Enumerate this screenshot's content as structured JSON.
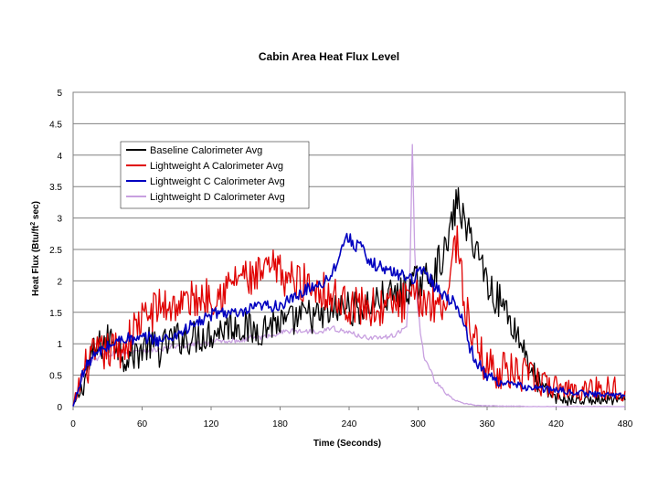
{
  "chart_data": {
    "type": "line",
    "title": "Cabin Area Heat Flux Level",
    "xlabel": "Time (Seconds)",
    "ylabel_main": "Heat Flux (Btu/ft",
    "ylabel_sup": "2",
    "ylabel_tail": " sec)",
    "xlim": [
      0,
      480
    ],
    "ylim": [
      0,
      5
    ],
    "xticks": [
      0,
      60,
      120,
      180,
      240,
      300,
      360,
      420,
      480
    ],
    "xtick_labels": [
      "0",
      "60",
      "120",
      "180",
      "240",
      "300",
      "360",
      "420",
      "480"
    ],
    "yticks": [
      0,
      0.5,
      1,
      1.5,
      2,
      2.5,
      3,
      3.5,
      4,
      4.5,
      5
    ],
    "ytick_labels": [
      "0",
      "0.5",
      "1",
      "1.5",
      "2",
      "2.5",
      "3",
      "3.5",
      "4",
      "4.5",
      "5"
    ],
    "grid": "horizontal",
    "legend_position": "upper-left",
    "series": [
      {
        "name": "Baseline Calorimeter Avg",
        "color": "#000000",
        "x": [
          0,
          8,
          15,
          25,
          35,
          45,
          55,
          65,
          75,
          85,
          95,
          105,
          115,
          125,
          135,
          145,
          155,
          165,
          175,
          185,
          195,
          205,
          215,
          225,
          235,
          245,
          255,
          265,
          275,
          285,
          295,
          305,
          315,
          325,
          330,
          335,
          340,
          345,
          350,
          355,
          360,
          365,
          370,
          375,
          380,
          385,
          390,
          395,
          400,
          410,
          420,
          430,
          440,
          450,
          460,
          470,
          480
        ],
        "y": [
          0,
          0.3,
          0.75,
          1.0,
          1.1,
          0.8,
          0.85,
          1.0,
          0.9,
          1.05,
          1.1,
          1.1,
          1.15,
          1.2,
          1.3,
          1.3,
          1.2,
          1.25,
          1.35,
          1.3,
          1.4,
          1.45,
          1.4,
          1.5,
          1.6,
          1.55,
          1.6,
          1.7,
          1.75,
          1.8,
          1.95,
          2.0,
          2.2,
          2.5,
          3.0,
          3.3,
          2.9,
          2.7,
          2.6,
          2.3,
          2.0,
          1.8,
          1.7,
          1.6,
          1.4,
          1.2,
          1.0,
          0.8,
          0.5,
          0.25,
          0.15,
          0.1,
          0.1,
          0.1,
          0.1,
          0.1,
          0.1
        ]
      },
      {
        "name": "Lightweight A Calorimeter Avg",
        "color": "#e00000",
        "x": [
          0,
          8,
          15,
          25,
          35,
          45,
          55,
          65,
          75,
          85,
          95,
          105,
          115,
          125,
          135,
          145,
          155,
          165,
          175,
          185,
          195,
          205,
          215,
          225,
          235,
          245,
          255,
          265,
          275,
          285,
          295,
          305,
          315,
          325,
          330,
          335,
          340,
          345,
          350,
          355,
          360,
          370,
          380,
          390,
          400,
          410,
          420,
          430,
          440,
          450,
          460,
          470,
          480
        ],
        "y": [
          0,
          0.5,
          0.75,
          0.85,
          0.9,
          0.95,
          1.3,
          1.45,
          1.6,
          1.6,
          1.65,
          1.7,
          1.75,
          1.8,
          1.9,
          2.1,
          2.0,
          2.1,
          2.2,
          2.05,
          2.0,
          1.95,
          1.9,
          1.75,
          1.65,
          1.6,
          1.6,
          1.55,
          1.6,
          1.65,
          1.7,
          1.7,
          1.65,
          1.7,
          2.4,
          2.7,
          1.6,
          1.3,
          1.0,
          0.8,
          0.65,
          0.6,
          0.55,
          0.5,
          0.45,
          0.35,
          0.3,
          0.3,
          0.25,
          0.3,
          0.3,
          0.3,
          0.25
        ]
      },
      {
        "name": "Lightweight C Calorimeter Avg",
        "color": "#0000c0",
        "x": [
          0,
          8,
          15,
          25,
          35,
          45,
          55,
          65,
          75,
          85,
          95,
          105,
          115,
          125,
          135,
          145,
          155,
          165,
          175,
          185,
          195,
          205,
          215,
          225,
          235,
          240,
          245,
          250,
          255,
          265,
          275,
          285,
          295,
          300,
          305,
          315,
          325,
          335,
          340,
          345,
          350,
          355,
          360,
          370,
          380,
          390,
          400,
          410,
          420,
          430,
          440,
          450,
          460,
          470,
          480
        ],
        "y": [
          0,
          0.5,
          0.75,
          0.9,
          1.0,
          1.1,
          1.05,
          1.1,
          1.05,
          1.1,
          1.2,
          1.3,
          1.4,
          1.5,
          1.5,
          1.45,
          1.55,
          1.6,
          1.6,
          1.65,
          1.75,
          1.9,
          1.95,
          2.1,
          2.6,
          2.7,
          2.55,
          2.6,
          2.3,
          2.25,
          2.15,
          2.1,
          2.05,
          2.1,
          2.2,
          1.9,
          1.75,
          1.6,
          1.3,
          0.95,
          0.75,
          0.6,
          0.5,
          0.4,
          0.35,
          0.32,
          0.3,
          0.28,
          0.26,
          0.24,
          0.22,
          0.2,
          0.2,
          0.18,
          0.18
        ]
      },
      {
        "name": "Lightweight D Calorimeter Avg",
        "color": "#c8a0e0",
        "x": [
          0,
          8,
          15,
          25,
          35,
          45,
          55,
          65,
          75,
          85,
          95,
          105,
          115,
          125,
          135,
          145,
          155,
          165,
          175,
          185,
          195,
          205,
          215,
          225,
          235,
          245,
          255,
          265,
          275,
          285,
          290,
          293,
          295,
          297,
          299,
          302,
          305,
          310,
          315,
          320,
          325,
          330,
          335,
          340,
          350,
          360,
          380,
          400,
          420,
          440,
          460,
          480
        ],
        "y": [
          0,
          0.45,
          0.7,
          0.8,
          0.85,
          0.85,
          0.9,
          0.9,
          0.9,
          0.95,
          0.95,
          1.0,
          1.0,
          1.05,
          1.05,
          1.05,
          1.1,
          1.1,
          1.15,
          1.2,
          1.2,
          1.2,
          1.2,
          1.25,
          1.2,
          1.15,
          1.1,
          1.1,
          1.1,
          1.2,
          1.3,
          2.2,
          4.2,
          2.5,
          1.7,
          1.2,
          0.8,
          0.6,
          0.4,
          0.3,
          0.2,
          0.12,
          0.08,
          0.05,
          0.02,
          0.01,
          0.01,
          0.0,
          0.0,
          0.0,
          0.0,
          0.0
        ]
      }
    ]
  }
}
